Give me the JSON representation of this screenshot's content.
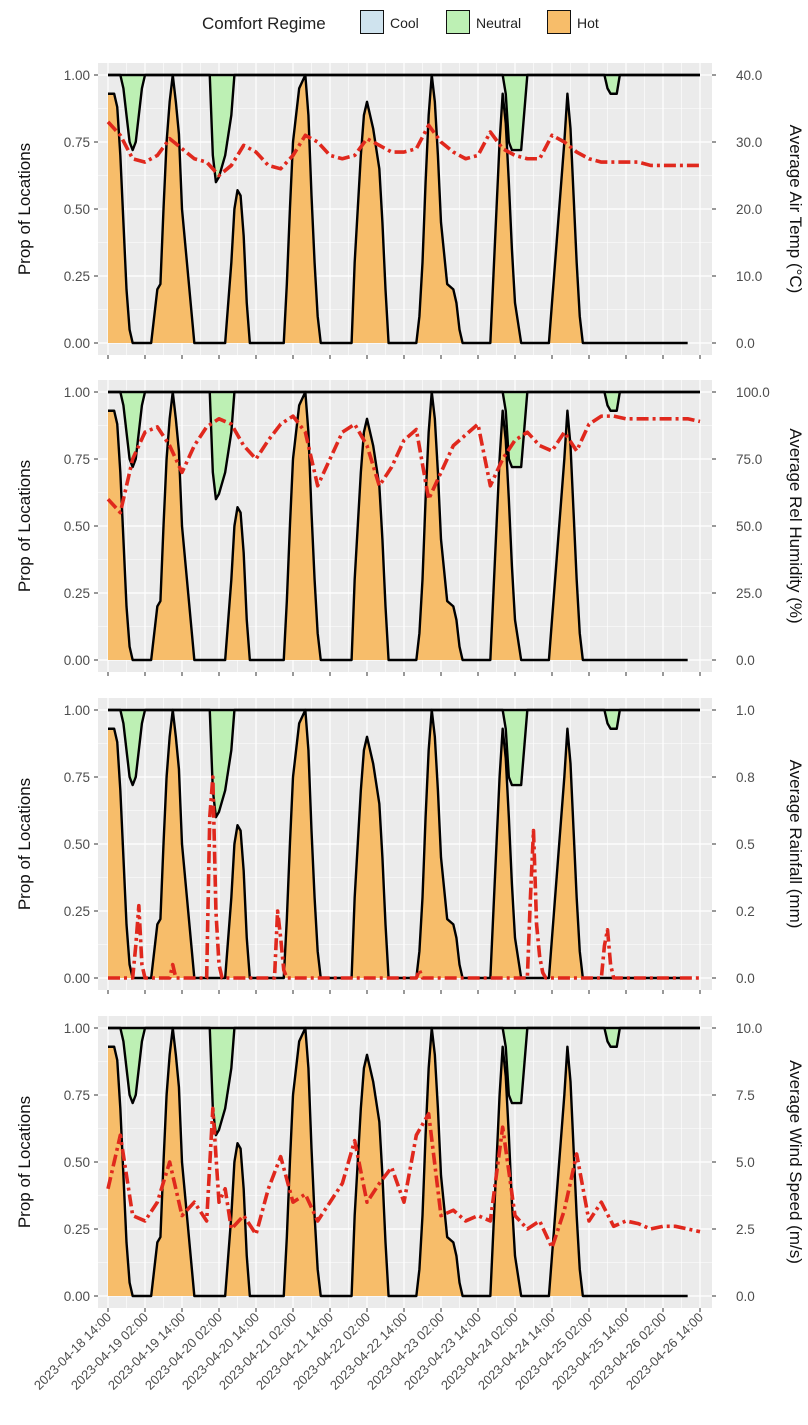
{
  "legend": {
    "title": "Comfort Regime",
    "items": [
      {
        "label": "Cool",
        "color": "#cfe3ee"
      },
      {
        "label": "Neutral",
        "color": "#bdf0b4"
      },
      {
        "label": "Hot",
        "color": "#f7bd6a"
      }
    ]
  },
  "colors": {
    "cool": "#cfe3ee",
    "neutral": "#bdf0b4",
    "hot": "#f7bd6a",
    "boundary": "#000000",
    "overlay": "#e0281d",
    "grid": "#ffffff"
  },
  "chart_data": {
    "type": "area",
    "x_ticks": [
      "2023-04-18 14:00",
      "2023-04-19 02:00",
      "2023-04-19 14:00",
      "2023-04-20 02:00",
      "2023-04-20 14:00",
      "2023-04-21 02:00",
      "2023-04-21 14:00",
      "2023-04-22 02:00",
      "2023-04-22 14:00",
      "2023-04-23 02:00",
      "2023-04-23 14:00",
      "2023-04-24 02:00",
      "2023-04-24 14:00",
      "2023-04-25 02:00",
      "2023-04-25 14:00",
      "2023-04-26 02:00",
      "2023-04-26 14:00"
    ],
    "left_axis": {
      "label": "Prop of Locations",
      "ylim": [
        0,
        1
      ],
      "ticks": [
        "0.00",
        "0.25",
        "0.50",
        "0.75",
        "1.00"
      ]
    },
    "regime_series": {
      "x_hours": [
        0,
        2,
        3,
        4,
        5,
        6,
        7,
        8,
        9,
        10,
        11,
        12,
        14,
        16,
        17,
        18,
        19,
        20,
        21,
        22,
        23,
        24,
        26,
        28,
        29,
        30,
        31,
        32,
        33,
        34,
        35,
        36,
        38,
        40,
        41,
        42,
        43,
        44,
        45,
        46,
        47,
        48,
        50,
        52,
        53,
        54,
        55,
        56,
        57,
        58,
        59,
        60,
        62,
        64,
        65,
        66,
        67,
        68,
        69,
        70,
        71,
        72,
        74,
        76,
        77,
        78,
        79,
        80,
        81,
        82,
        83,
        84,
        86,
        88,
        89,
        90,
        91,
        92,
        93,
        94,
        95,
        96,
        98,
        100,
        101,
        102,
        103,
        104,
        105,
        106,
        107,
        108,
        110,
        112,
        113,
        114,
        115,
        116,
        117,
        118,
        119,
        120,
        122,
        124,
        125,
        126,
        127,
        128,
        129,
        130,
        131,
        132,
        134,
        136,
        137,
        138,
        139,
        140,
        141,
        142,
        143,
        144,
        146,
        148,
        149,
        150,
        151,
        152,
        153,
        154,
        155,
        156,
        158,
        160,
        161,
        162,
        163,
        164,
        165,
        166,
        167,
        168,
        170,
        172,
        173,
        174,
        175,
        176,
        177,
        178,
        179,
        180,
        182,
        184,
        185,
        186,
        187,
        188,
        189,
        190,
        191,
        192
      ],
      "hot_upper": [
        0.93,
        0.93,
        0.88,
        0.7,
        0.45,
        0.2,
        0.05,
        0,
        0,
        0,
        0,
        0,
        0,
        0.2,
        0.22,
        0.5,
        0.75,
        0.9,
        1,
        0.9,
        0.78,
        0.5,
        0.25,
        0,
        0,
        0,
        0,
        0,
        0,
        0,
        0,
        0,
        0,
        0.3,
        0.5,
        0.57,
        0.55,
        0.4,
        0.15,
        0,
        0,
        0,
        0,
        0,
        0,
        0,
        0,
        0,
        0,
        0.22,
        0.5,
        0.75,
        0.95,
        1,
        0.85,
        0.55,
        0.3,
        0.1,
        0,
        0,
        0,
        0,
        0,
        0,
        0,
        0,
        0,
        0.3,
        0.5,
        0.7,
        0.85,
        0.9,
        0.8,
        0.65,
        0.45,
        0.2,
        0,
        0,
        0,
        0,
        0,
        0,
        0,
        0,
        0.1,
        0.3,
        0.6,
        0.85,
        1,
        0.9,
        0.7,
        0.45,
        0.22,
        0.2,
        0.15,
        0.05,
        0,
        0,
        0,
        0,
        0,
        0,
        0,
        0,
        0.25,
        0.5,
        0.75,
        0.93,
        0.82,
        0.6,
        0.35,
        0.15,
        0,
        0,
        0,
        0,
        0,
        0,
        0,
        0,
        0,
        0.15,
        0.45,
        0.75,
        0.93,
        0.8,
        0.55,
        0.3,
        0.1,
        0,
        0,
        0,
        0,
        0,
        0,
        0,
        0,
        0,
        0,
        0,
        0,
        0,
        0,
        0,
        0,
        0,
        0,
        0,
        0,
        0,
        0,
        0,
        0,
        0,
        0,
        0,
        0,
        0
      ],
      "neutral_upper": [
        1,
        1,
        1,
        1,
        0.95,
        0.85,
        0.75,
        0.72,
        0.75,
        0.85,
        0.95,
        1,
        1,
        1,
        1,
        1,
        1,
        1,
        1,
        1,
        1,
        1,
        1,
        1,
        1,
        1,
        1,
        1,
        1,
        0.7,
        0.6,
        0.62,
        0.7,
        0.85,
        1,
        1,
        1,
        1,
        1,
        1,
        1,
        1,
        1,
        1,
        1,
        1,
        1,
        1,
        1,
        1,
        1,
        1,
        1,
        1,
        1,
        1,
        1,
        1,
        1,
        1,
        1,
        1,
        1,
        1,
        1,
        1,
        1,
        1,
        1,
        1,
        1,
        1,
        1,
        1,
        1,
        1,
        1,
        1,
        1,
        1,
        1,
        1,
        1,
        1,
        1,
        1,
        1,
        1,
        1,
        1,
        1,
        1,
        1,
        1,
        1,
        1,
        1,
        1,
        1,
        1,
        1,
        1,
        1,
        1,
        1,
        1,
        1,
        1,
        0.93,
        0.75,
        0.72,
        0.72,
        0.72,
        1,
        1,
        1,
        1,
        1,
        1,
        1,
        1,
        1,
        1,
        1,
        1,
        1,
        1,
        1,
        1,
        1,
        1,
        1,
        1,
        1,
        1,
        0.95,
        0.93,
        0.93,
        0.93,
        1,
        1,
        1,
        1,
        1,
        1,
        1,
        1,
        1,
        1,
        1,
        1,
        1,
        1,
        1,
        1,
        1,
        1,
        1,
        1,
        1,
        1,
        1,
        1,
        1,
        1,
        1,
        1
      ]
    },
    "panels": [
      {
        "right_label": "Average Air Temp (°C)",
        "right_ylim": [
          0,
          40
        ],
        "right_ticks": [
          "0.0",
          "10.0",
          "20.0",
          "30.0",
          "40.0"
        ],
        "x_hours": [
          0,
          4,
          8,
          12,
          16,
          20,
          24,
          28,
          32,
          36,
          40,
          44,
          48,
          52,
          56,
          60,
          64,
          68,
          72,
          76,
          80,
          84,
          88,
          92,
          96,
          100,
          104,
          108,
          112,
          116,
          120,
          124,
          128,
          132,
          136,
          140,
          144,
          148,
          152,
          156,
          160,
          164,
          168,
          172,
          176,
          180,
          184,
          188,
          192
        ],
        "values": [
          33,
          31,
          27.5,
          27,
          28,
          30.5,
          29,
          27.5,
          27,
          25,
          26.5,
          29.5,
          28.5,
          26.5,
          26,
          28,
          31,
          30,
          28,
          27.5,
          28,
          30.5,
          29.5,
          28.5,
          28.5,
          29,
          32.5,
          30,
          28.5,
          27.5,
          28,
          31.5,
          29,
          28,
          27.5,
          27.5,
          31,
          30,
          28.5,
          27.5,
          27,
          27,
          27,
          27,
          26.5,
          26.5,
          26.5,
          26.5,
          26.5
        ]
      },
      {
        "right_label": "Average Rel Humidity (%)",
        "right_ylim": [
          0,
          100
        ],
        "right_ticks": [
          "0.0",
          "25.0",
          "50.0",
          "75.0",
          "100.0"
        ],
        "x_hours": [
          0,
          4,
          8,
          12,
          16,
          20,
          24,
          28,
          32,
          36,
          40,
          44,
          48,
          52,
          56,
          60,
          64,
          68,
          72,
          76,
          80,
          84,
          88,
          92,
          96,
          100,
          104,
          108,
          112,
          116,
          120,
          124,
          128,
          132,
          136,
          140,
          144,
          148,
          152,
          156,
          160,
          164,
          168,
          172,
          176,
          180,
          184,
          188,
          192
        ],
        "values": [
          60,
          55,
          75,
          85,
          87,
          80,
          70,
          80,
          87,
          90,
          88,
          80,
          75,
          82,
          88,
          91,
          85,
          65,
          75,
          85,
          88,
          80,
          65,
          72,
          82,
          86,
          60,
          70,
          80,
          84,
          88,
          65,
          75,
          82,
          85,
          80,
          78,
          85,
          78,
          88,
          91,
          91,
          90,
          90,
          90,
          90,
          90,
          90,
          89
        ]
      },
      {
        "right_label": "Average Rainfall (mm)",
        "right_ylim": [
          0,
          1
        ],
        "right_ticks": [
          "0.0",
          "0.2",
          "0.5",
          "0.8",
          "1.0"
        ],
        "x_hours": [
          0,
          8,
          9,
          10,
          11,
          12,
          14,
          20,
          21,
          22,
          24,
          32,
          33,
          34,
          35,
          36,
          37,
          40,
          48,
          54,
          55,
          56,
          57,
          58,
          62,
          72,
          96,
          100,
          101,
          102,
          104,
          136,
          137,
          138,
          139,
          140,
          141,
          142,
          160,
          161,
          162,
          163,
          164,
          192
        ],
        "values": [
          0,
          0,
          0.12,
          0.27,
          0.05,
          0,
          0,
          0,
          0.05,
          0,
          0,
          0,
          0.6,
          0.75,
          0.25,
          0.05,
          0,
          0,
          0,
          0,
          0.25,
          0.15,
          0.03,
          0,
          0,
          0,
          0,
          0,
          0.03,
          0,
          0,
          0,
          0.3,
          0.55,
          0.2,
          0.08,
          0.02,
          0,
          0,
          0.12,
          0.18,
          0.05,
          0,
          0
        ]
      },
      {
        "right_label": "Average Wind Speed (m/s)",
        "right_ylim": [
          0,
          10
        ],
        "right_ticks": [
          "0.0",
          "2.5",
          "5.0",
          "7.5",
          "10.0"
        ],
        "x_hours": [
          0,
          4,
          8,
          12,
          16,
          20,
          24,
          28,
          32,
          34,
          36,
          38,
          40,
          44,
          48,
          52,
          56,
          60,
          64,
          68,
          72,
          76,
          80,
          84,
          88,
          92,
          96,
          100,
          104,
          108,
          112,
          116,
          120,
          124,
          128,
          132,
          136,
          140,
          144,
          148,
          152,
          156,
          160,
          164,
          168,
          172,
          176,
          180,
          184,
          188,
          192
        ],
        "values": [
          4,
          6,
          3,
          2.8,
          3.5,
          5,
          3,
          3.5,
          2.8,
          7,
          3.5,
          4,
          2.5,
          3,
          2.3,
          4,
          5.2,
          3.5,
          3.8,
          2.8,
          3.5,
          4.2,
          5.8,
          3.5,
          4.2,
          4.8,
          3.5,
          6,
          6.8,
          3,
          3.2,
          2.8,
          3,
          2.8,
          6.3,
          3,
          2.5,
          2.8,
          1.8,
          3.2,
          5.3,
          2.8,
          3.5,
          2.6,
          2.8,
          2.7,
          2.5,
          2.6,
          2.6,
          2.5,
          2.4
        ]
      }
    ]
  }
}
